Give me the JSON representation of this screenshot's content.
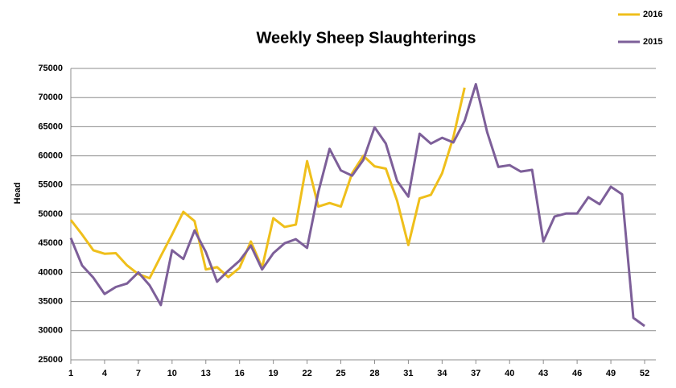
{
  "chart_data": {
    "type": "line",
    "title": "Weekly Sheep Slaughterings",
    "y_label": "Head",
    "x": [
      1,
      2,
      3,
      4,
      5,
      6,
      7,
      8,
      9,
      10,
      11,
      12,
      13,
      14,
      15,
      16,
      17,
      18,
      19,
      20,
      21,
      22,
      23,
      24,
      25,
      26,
      27,
      28,
      29,
      30,
      31,
      32,
      33,
      34,
      35,
      36,
      37,
      38,
      39,
      40,
      41,
      42,
      43,
      44,
      45,
      46,
      47,
      48,
      49,
      50,
      51,
      52
    ],
    "series": [
      {
        "name": "2016",
        "color": "#efbf1b",
        "values": [
          49000,
          46500,
          43800,
          43200,
          43300,
          41200,
          39700,
          39000,
          42800,
          46500,
          50400,
          48800,
          40500,
          40900,
          39200,
          40800,
          45300,
          40800,
          49300,
          47800,
          48200,
          59100,
          51300,
          51900,
          51300,
          57000,
          60000,
          58200,
          57800,
          52300,
          44700,
          52700,
          53300,
          57000,
          63200,
          71700,
          null,
          null,
          null,
          null,
          null,
          null,
          null,
          null,
          null,
          null,
          null,
          null,
          null,
          null,
          null,
          null
        ]
      },
      {
        "name": "2015",
        "color": "#7d5f99",
        "values": [
          45900,
          41200,
          39100,
          36300,
          37500,
          38100,
          40000,
          37800,
          34400,
          43800,
          42300,
          47200,
          43500,
          38400,
          40300,
          42000,
          44600,
          40500,
          43300,
          45000,
          45700,
          44200,
          53800,
          61200,
          57500,
          56600,
          59300,
          64900,
          62100,
          55700,
          53000,
          63800,
          62100,
          63100,
          62300,
          66000,
          72300,
          64100,
          58100,
          58400,
          57300,
          57600,
          45300,
          49600,
          50100,
          50100,
          52900,
          51700,
          54700,
          53400,
          32200,
          30800
        ]
      }
    ],
    "xlim": [
      1,
      52
    ],
    "xticks": [
      1,
      4,
      7,
      10,
      13,
      16,
      19,
      22,
      25,
      28,
      31,
      34,
      37,
      40,
      43,
      46,
      49,
      52
    ],
    "ylim": [
      25000,
      75000
    ],
    "yticks": [
      25000,
      30000,
      35000,
      40000,
      45000,
      50000,
      55000,
      60000,
      65000,
      70000,
      75000
    ],
    "grid": true,
    "legend": "top-right"
  }
}
